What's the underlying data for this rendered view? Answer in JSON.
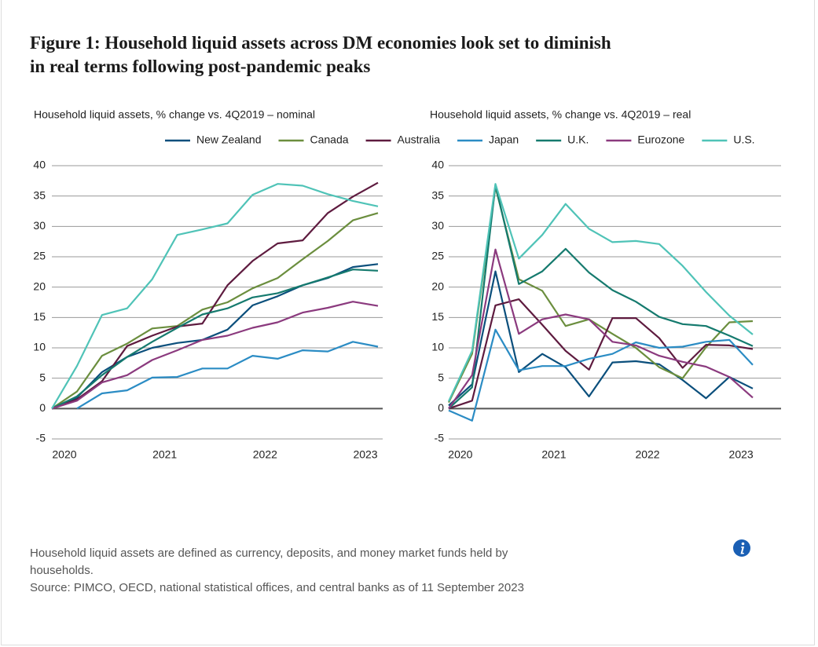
{
  "title": "Figure 1: Household liquid assets across DM economies look set to diminish in real terms following post-pandemic peaks",
  "notes": [
    "Household liquid assets are defined as currency, deposits, and money market funds held by households.",
    "Source: PIMCO, OECD, national statistical offices, and central banks as of 11 September 2023"
  ],
  "chart_data": [
    {
      "type": "line",
      "title": "Household liquid assets, % change vs. 4Q2019 – nominal",
      "x": [
        2019.875,
        2020.125,
        2020.375,
        2020.625,
        2020.875,
        2021.125,
        2021.375,
        2021.625,
        2021.875,
        2022.125,
        2022.375,
        2022.625,
        2022.875,
        2023.125
      ],
      "xlim": [
        2019.875,
        2023.125
      ],
      "xticks": [
        2020,
        2021,
        2022,
        2023
      ],
      "ylim": [
        -5,
        40
      ],
      "yticks": [
        -5,
        0,
        5,
        10,
        15,
        20,
        25,
        30,
        35,
        40
      ],
      "grid": true,
      "series": [
        {
          "name": "New Zealand",
          "color": "#0b4f7c",
          "values": [
            0,
            1.8,
            6,
            8.5,
            10,
            10.8,
            11.3,
            13,
            17,
            18.5,
            20.3,
            21.5,
            23.3,
            23.8
          ]
        },
        {
          "name": "Canada",
          "color": "#6b8e3e",
          "values": [
            0,
            2.8,
            8.7,
            10.7,
            13.2,
            13.6,
            16.3,
            17.5,
            19.8,
            21.5,
            24.6,
            27.6,
            31,
            32.2
          ]
        },
        {
          "name": "Australia",
          "color": "#5e1b3f",
          "values": [
            0,
            1.5,
            4.5,
            10.3,
            12,
            13.5,
            14,
            20.3,
            24.3,
            27.2,
            27.7,
            32.2,
            34.9,
            37.2
          ]
        },
        {
          "name": "Japan",
          "color": "#2b8cc4",
          "values": [
            null,
            0,
            2.5,
            3,
            5.1,
            5.2,
            6.6,
            6.6,
            8.7,
            8.2,
            9.6,
            9.4,
            11,
            10.2
          ]
        },
        {
          "name": "U.K.",
          "color": "#157a6e",
          "values": [
            0,
            2,
            5.5,
            8.5,
            11,
            13.3,
            15.5,
            16.5,
            18.3,
            19,
            20.3,
            21.6,
            22.9,
            22.7
          ]
        },
        {
          "name": "Eurozone",
          "color": "#8b3a7e",
          "values": [
            0,
            1.3,
            4.3,
            5.5,
            8,
            9.6,
            11.3,
            12,
            13.3,
            14.2,
            15.8,
            16.6,
            17.6,
            16.9
          ]
        },
        {
          "name": "U.S.",
          "color": "#4fc3b7",
          "values": [
            0,
            7,
            15.4,
            16.5,
            21.3,
            28.6,
            29.5,
            30.5,
            35.2,
            37,
            36.7,
            35.3,
            34.2,
            33.3
          ]
        }
      ]
    },
    {
      "type": "line",
      "title": "Household liquid assets, % change vs. 4Q2019 – real",
      "x": [
        2019.875,
        2020.125,
        2020.375,
        2020.625,
        2020.875,
        2021.125,
        2021.375,
        2021.625,
        2021.875,
        2022.125,
        2022.375,
        2022.625,
        2022.875,
        2023.125
      ],
      "xlim": [
        2019.875,
        2023.125
      ],
      "xticks": [
        2020,
        2021,
        2022,
        2023
      ],
      "ylim": [
        -5,
        40
      ],
      "yticks": [
        -5,
        0,
        5,
        10,
        15,
        20,
        25,
        30,
        35,
        40
      ],
      "grid": true,
      "series": [
        {
          "name": "New Zealand",
          "color": "#0b4f7c",
          "values": [
            0.5,
            4,
            22.6,
            6,
            9,
            6.8,
            2,
            7.6,
            7.8,
            7.3,
            4.7,
            1.7,
            5.2,
            3.3
          ]
        },
        {
          "name": "Canada",
          "color": "#6b8e3e",
          "values": [
            1,
            9,
            36.5,
            21.3,
            19.4,
            13.6,
            14.7,
            12.3,
            10,
            6.8,
            5,
            10.1,
            14.2,
            14.4
          ]
        },
        {
          "name": "Australia",
          "color": "#5e1b3f",
          "values": [
            0,
            1.3,
            17,
            18,
            13.8,
            9.5,
            6.4,
            14.9,
            14.9,
            11.6,
            6.7,
            10.5,
            10.4,
            9.8
          ]
        },
        {
          "name": "Japan",
          "color": "#2b8cc4",
          "values": [
            -0.3,
            -2,
            13,
            6.3,
            7,
            7,
            8.2,
            9,
            10.9,
            10,
            10.2,
            11,
            11.3,
            7.2
          ]
        },
        {
          "name": "U.K.",
          "color": "#157a6e",
          "values": [
            0,
            3.5,
            36.8,
            20.5,
            22.6,
            26.3,
            22.4,
            19.5,
            17.6,
            15.1,
            13.9,
            13.6,
            12,
            10.3
          ]
        },
        {
          "name": "Eurozone",
          "color": "#8b3a7e",
          "values": [
            0,
            5.5,
            26.2,
            12.3,
            14.7,
            15.5,
            14.7,
            11,
            10.4,
            8.7,
            7.7,
            6.9,
            5.2,
            1.8
          ]
        },
        {
          "name": "U.S.",
          "color": "#4fc3b7",
          "values": [
            1.2,
            9.5,
            37,
            24.7,
            28.6,
            33.7,
            29.6,
            27.4,
            27.6,
            27.1,
            23.5,
            19.2,
            15.3,
            12.2
          ]
        }
      ]
    }
  ]
}
